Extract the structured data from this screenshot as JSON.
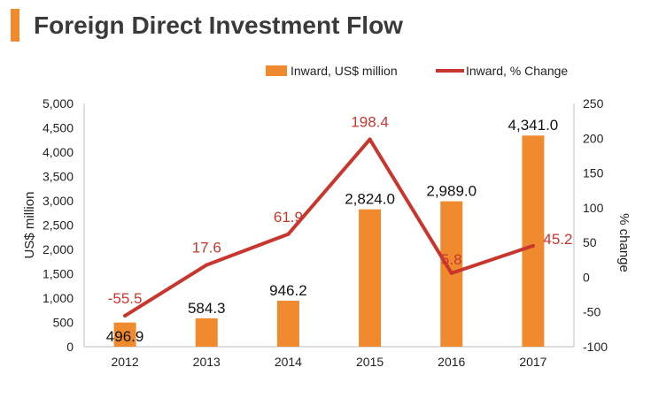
{
  "header": {
    "title": "Foreign Direct Investment Flow"
  },
  "colors": {
    "accent": "#F08A2E",
    "bar": "#F08A2E",
    "line": "#C8362E",
    "axis": "#bfbfbf",
    "text": "#222222"
  },
  "chart_data": {
    "type": "bar",
    "categories": [
      "2012",
      "2013",
      "2014",
      "2015",
      "2016",
      "2017"
    ],
    "series": [
      {
        "name": "Inward, US$ million",
        "type": "bar",
        "axis": "left",
        "values": [
          496.9,
          584.3,
          946.2,
          2824.0,
          2989.0,
          4341.0
        ],
        "labels": [
          "496.9",
          "584.3",
          "946.2",
          "2,824.0",
          "2,989.0",
          "4,341.0"
        ]
      },
      {
        "name": "Inward, % Change",
        "type": "line",
        "axis": "right",
        "values": [
          -55.5,
          17.6,
          61.9,
          198.4,
          5.8,
          45.2
        ],
        "labels": [
          "-55.5",
          "17.6",
          "61.9",
          "198.4",
          "5.8",
          "45.2"
        ]
      }
    ],
    "ylabel": "US$ million",
    "y2label": "% change",
    "ylim": [
      0,
      5000
    ],
    "y2lim": [
      -100,
      250
    ],
    "yticks": [
      "0",
      "500",
      "1,000",
      "1,500",
      "2,000",
      "2,500",
      "3,000",
      "3,500",
      "4,000",
      "4,500",
      "5,000"
    ],
    "y2ticks": [
      "-100",
      "-50",
      "0",
      "50",
      "100",
      "150",
      "200",
      "250"
    ],
    "legend": "top"
  }
}
